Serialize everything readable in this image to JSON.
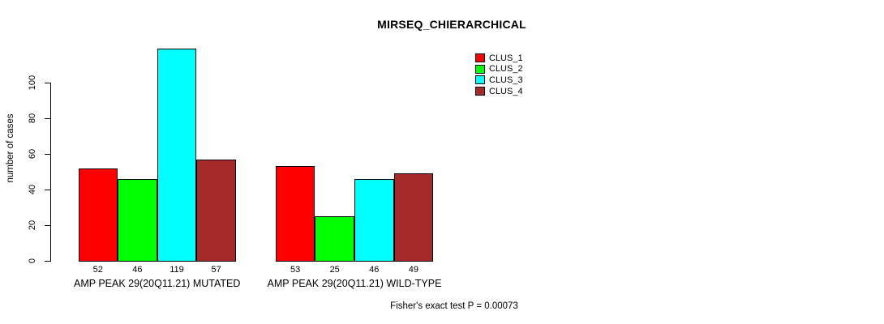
{
  "title": "MIRSEQ_CHIERARCHICAL",
  "footnote": "Fisher's exact test P = 0.00073",
  "chart_data": {
    "type": "bar",
    "title": "MIRSEQ_CHIERARCHICAL",
    "ylabel": "number of cases",
    "xlabel": "",
    "categories": [
      "AMP PEAK 29(20Q11.21) MUTATED",
      "AMP PEAK 29(20Q11.21) WILD-TYPE"
    ],
    "series": [
      {
        "name": "CLUS_1",
        "color": "#FF0000",
        "values": [
          52,
          53
        ]
      },
      {
        "name": "CLUS_2",
        "color": "#00FF00",
        "values": [
          46,
          25
        ]
      },
      {
        "name": "CLUS_3",
        "color": "#00FFFF",
        "values": [
          119,
          46
        ]
      },
      {
        "name": "CLUS_4",
        "color": "#A52A2A",
        "values": [
          57,
          49
        ]
      }
    ],
    "bar_value_labels": [
      [
        52,
        46,
        119,
        57
      ],
      [
        53,
        25,
        46,
        49
      ]
    ],
    "y_ticks": [
      0,
      20,
      40,
      60,
      80,
      100
    ],
    "ylim": [
      0,
      122
    ],
    "grid": false,
    "legend_position": "top-right",
    "annotation": "Fisher's exact test P = 0.00073"
  }
}
